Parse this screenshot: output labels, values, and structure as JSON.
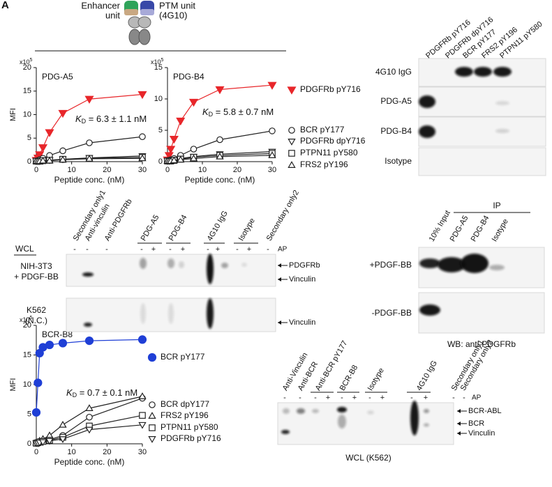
{
  "panel_letter": "A",
  "schematic": {
    "enhancer": [
      "Enhancer",
      "unit"
    ],
    "ptm": [
      "PTM unit",
      "(4G10)"
    ]
  },
  "chart_data": [
    {
      "type": "line",
      "title": "PDG-A5",
      "ylabel": "MFI",
      "xlabel": "Peptide conc. (nM)",
      "y_multiplier": [
        "x10",
        "5"
      ],
      "kd_label": [
        "K",
        "D",
        " = 6.3 ± 1.1 nM"
      ],
      "x": [
        0,
        0.47,
        0.94,
        1.88,
        3.75,
        7.5,
        15,
        30
      ],
      "xlim": [
        0,
        30
      ],
      "xticks": [
        0,
        10,
        20,
        30
      ],
      "ylim": [
        0,
        20
      ],
      "yticks": [
        0,
        5,
        10,
        15,
        20
      ],
      "series": [
        {
          "color": "#e8262a",
          "marker": "triangle-down",
          "filled": true,
          "values": [
            0.3,
            0.8,
            1.5,
            3,
            6.2,
            10.3,
            13.3,
            14.3
          ]
        },
        {
          "color": "#222222",
          "marker": "circle",
          "filled": false,
          "values": [
            0.1,
            0.2,
            0.4,
            0.7,
            1.3,
            2.3,
            4,
            5.3
          ]
        },
        {
          "color": "#222222",
          "marker": "triangle-down",
          "filled": false,
          "values": [
            0.1,
            0.1,
            0.1,
            0.2,
            0.3,
            0.5,
            0.8,
            1.2
          ]
        },
        {
          "color": "#222222",
          "marker": "square",
          "filled": false,
          "values": [
            0.1,
            0.1,
            0.1,
            0.2,
            0.3,
            0.5,
            0.7,
            0.9
          ]
        },
        {
          "color": "#222222",
          "marker": "triangle-up",
          "filled": false,
          "values": [
            0.1,
            0.1,
            0.1,
            0.2,
            0.2,
            0.4,
            0.6,
            0.7
          ]
        }
      ]
    },
    {
      "type": "line",
      "title": "PDG-B4",
      "xlabel": "Peptide conc. (nM)",
      "y_multiplier": [
        "x10",
        "5"
      ],
      "kd_label": [
        "K",
        "D",
        " = 5.8 ± 0.7 nM"
      ],
      "x": [
        0,
        0.47,
        0.94,
        1.88,
        3.75,
        7.5,
        15,
        30
      ],
      "xlim": [
        0,
        30
      ],
      "xticks": [
        0,
        10,
        20,
        30
      ],
      "ylim": [
        0,
        15
      ],
      "yticks": [
        0,
        5,
        10,
        15
      ],
      "series": [
        {
          "name": "PDGFRb pY716",
          "color": "#e8262a",
          "marker": "triangle-down",
          "filled": true,
          "values": [
            0.3,
            1,
            2,
            3.6,
            6.5,
            9.5,
            11.5,
            12.2
          ]
        },
        {
          "name": "BCR pY177",
          "color": "#222222",
          "marker": "circle",
          "filled": false,
          "values": [
            0.1,
            0.2,
            0.3,
            0.5,
            1,
            2,
            3.5,
            4.9
          ]
        },
        {
          "name": "PDGFRb dpY716",
          "color": "#222222",
          "marker": "triangle-down",
          "filled": false,
          "values": [
            0.1,
            0.1,
            0.2,
            0.3,
            0.5,
            0.8,
            1.2,
            1.6
          ]
        },
        {
          "name": "PTPN11 pY580",
          "color": "#222222",
          "marker": "square",
          "filled": false,
          "values": [
            0.1,
            0.1,
            0.1,
            0.2,
            0.4,
            0.7,
            1,
            1.3
          ]
        },
        {
          "name": "FRS2 pY196",
          "color": "#222222",
          "marker": "triangle-up",
          "filled": false,
          "values": [
            0.1,
            0.1,
            0.1,
            0.2,
            0.3,
            0.5,
            0.8,
            1
          ]
        }
      ]
    },
    {
      "type": "line",
      "title": "BCR-B8",
      "ylabel": "MFI",
      "xlabel": "Peptide conc. (nM)",
      "y_multiplier": [
        "x10",
        "5"
      ],
      "kd_label": [
        "K",
        "D",
        " = 0.7 ± 0.1 nM"
      ],
      "x": [
        0,
        0.47,
        0.94,
        1.88,
        3.75,
        7.5,
        15,
        30
      ],
      "xlim": [
        0,
        30
      ],
      "xticks": [
        0,
        10,
        20,
        30
      ],
      "ylim": [
        0,
        20
      ],
      "yticks": [
        0,
        5,
        10,
        15,
        20
      ],
      "series": [
        {
          "name": "BCR pY177",
          "color": "#1f3fd6",
          "marker": "circle",
          "filled": true,
          "values": [
            5.3,
            10.3,
            15.3,
            16.3,
            16.7,
            17,
            17.4,
            17.6
          ]
        },
        {
          "name": "BCR dpY177",
          "color": "#222222",
          "marker": "circle",
          "filled": false,
          "values": [
            0.1,
            0.2,
            0.3,
            0.4,
            0.7,
            1.4,
            4.5,
            7.7
          ]
        },
        {
          "name": "FRS2 pY196",
          "color": "#222222",
          "marker": "triangle-up",
          "filled": false,
          "values": [
            0.2,
            0.3,
            0.5,
            0.8,
            1.4,
            3.2,
            6,
            8
          ]
        },
        {
          "name": "PTPN11 pY580",
          "color": "#222222",
          "marker": "square",
          "filled": false,
          "values": [
            0.1,
            0.2,
            0.3,
            0.4,
            0.6,
            1.1,
            3,
            4.8
          ]
        },
        {
          "name": "PDGFRb pY716",
          "color": "#222222",
          "marker": "triangle-down",
          "filled": false,
          "values": [
            0.1,
            0.1,
            0.2,
            0.3,
            0.5,
            0.8,
            2.4,
            3.2
          ]
        }
      ]
    }
  ],
  "blots": {
    "peptide_blot": {
      "columns": [
        "PDGFRb pY716",
        "PDGFRb dpY716",
        "BCR pY177",
        "FRS2 pY196",
        "PTPN11 pY580"
      ],
      "rows": [
        "4G10 IgG",
        "PDG-A5",
        "PDG-B4",
        "Isotype"
      ]
    },
    "wcl_blot": {
      "columns": [
        "Secondary only1",
        "Anti-vinculin",
        "Anti-PDGFRb",
        "PDG-A5",
        "PDG-B4",
        "4G10 IgG",
        "Isotype",
        "Secondary only2"
      ],
      "lysate": "WCL",
      "signs": [
        "-",
        "-",
        "-",
        "-",
        "+",
        "-",
        "+",
        "-",
        "+",
        "-",
        "+",
        "-"
      ],
      "ap": "AP",
      "rows": [
        [
          "NIH-3T3",
          "+ PDGF-BB"
        ],
        [
          "K562",
          "(N.C.)"
        ]
      ],
      "arrows": [
        "PDGFRb",
        "Vinculin",
        "Vinculin"
      ]
    },
    "ip_blot": {
      "columns": [
        "10% Input",
        "PDG-A5",
        "PDG-B4",
        "Isotype"
      ],
      "group": "IP",
      "rows": [
        "+PDGF-BB",
        "-PDGF-BB"
      ],
      "caption": "WB: anti-PDGFRb"
    },
    "k562_blot": {
      "columns": [
        "Anti-Vinculin",
        "Anti-BCR",
        "Anti-BCR pY177",
        "BCR-B8",
        "Isotype",
        "4G10 IgG",
        "Secondary only1",
        "Secondary only2"
      ],
      "signs": [
        "-",
        "-",
        "-",
        "+",
        "-",
        "+",
        "-",
        "+",
        "-",
        "+",
        "-",
        "-"
      ],
      "ap": "AP",
      "arrows": [
        "BCR-ABL",
        "BCR",
        "Vinculin"
      ],
      "caption": "WCL (K562)"
    }
  }
}
